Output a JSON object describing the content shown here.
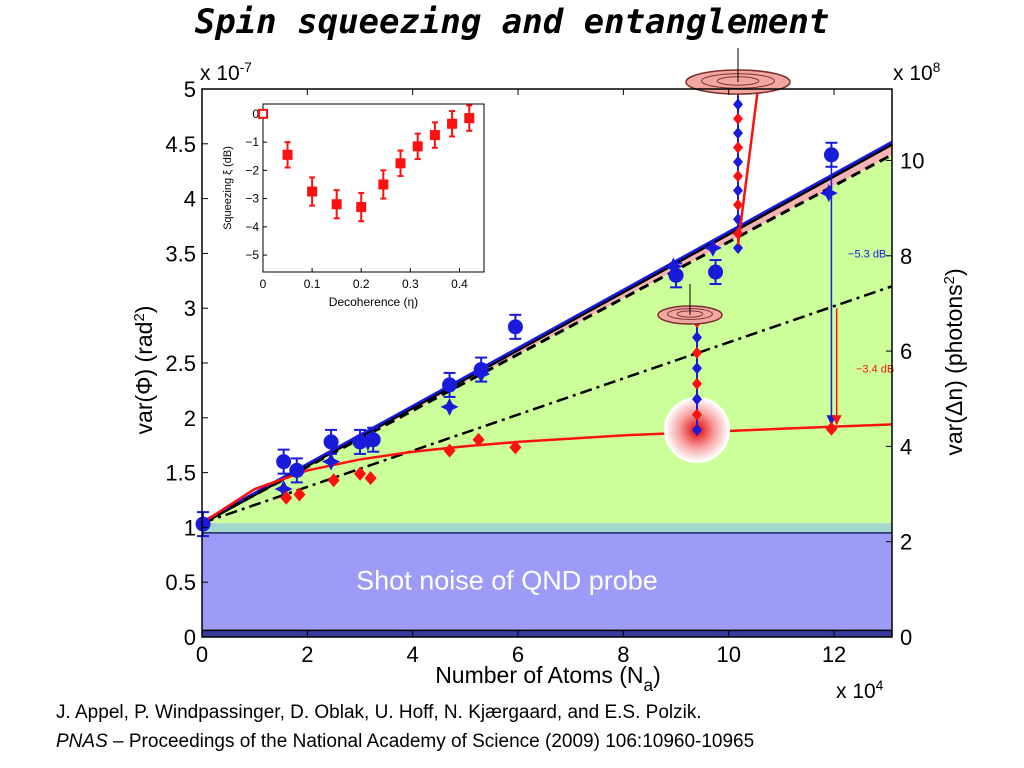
{
  "title": "Spin squeezing and entanglement",
  "references": {
    "authors": "J. Appel, P. Windpassinger, D. Oblak, U. Hoff, N. Kjærgaard, and E.S. Polzik.",
    "journal_italic": "PNAS",
    "journal_rest": " – Proceedings of the National Academy of Science (2009) 106:10960-10965"
  },
  "colors": {
    "green_fill": "#ccff99",
    "pink_fill": "#f4b4b4",
    "teal_band": "#a3d8cc",
    "probe_band": "#9c9cf8",
    "dark_band": "#3b3b9e",
    "blue": "#1a1adb",
    "red": "#ff1010",
    "black": "#000000"
  },
  "chart_data": [
    {
      "type": "scatter",
      "title": "",
      "xlabel": "Number of Atoms (N",
      "xlabel_sub": "a",
      "xlabel_close": ")",
      "x_multiplier": "x 10",
      "x_multiplier_exp": "4",
      "ylabel_left": "var(Φ)    (rad",
      "ylabel_left_exp": "2",
      "ylabel_left_close": ")",
      "y_multiplier": "x 10",
      "y_multiplier_exp": "-7",
      "ylabel_right": "var(Δn)   (photons",
      "ylabel_right_exp": "2",
      "ylabel_right_close": ")",
      "y2_multiplier": "x 10",
      "y2_multiplier_exp": "8",
      "xlim": [
        0,
        13.1
      ],
      "ylim": [
        0,
        5
      ],
      "y2lim": [
        0,
        11.5
      ],
      "xticks": [
        "0",
        "2",
        "4",
        "6",
        "8",
        "10",
        "12"
      ],
      "xtick_values": [
        0,
        2,
        4,
        6,
        8,
        10,
        12
      ],
      "yticks": [
        "0",
        "0.5",
        "1",
        "1.5",
        "2",
        "2.5",
        "3",
        "3.5",
        "4",
        "4.5",
        "5"
      ],
      "ytick_values": [
        0,
        0.5,
        1,
        1.5,
        2,
        2.5,
        3,
        3.5,
        4,
        4.5,
        5
      ],
      "y2ticks": [
        "0",
        "2",
        "4",
        "6",
        "8",
        "10"
      ],
      "y2tick_values": [
        0,
        2,
        4,
        6,
        8,
        10
      ],
      "band_label": "Shot noise of QND probe",
      "shot_noise_level": 0.95,
      "teal_band_top": 1.04,
      "dark_band_top": 0.06,
      "projection_noise_line": {
        "x": [
          0,
          13.1
        ],
        "y": [
          1.04,
          4.5
        ]
      },
      "dashed_line": {
        "x": [
          0,
          13.1
        ],
        "y": [
          1.04,
          4.4
        ]
      },
      "dashdot_line": {
        "x": [
          0,
          13.1
        ],
        "y": [
          1.04,
          3.2
        ]
      },
      "fit_curve": {
        "x": [
          0,
          1,
          2,
          3,
          4,
          5,
          6,
          7,
          8,
          9,
          10,
          11,
          12,
          13.1
        ],
        "y": [
          1.04,
          1.35,
          1.52,
          1.62,
          1.69,
          1.74,
          1.78,
          1.81,
          1.84,
          1.86,
          1.88,
          1.9,
          1.92,
          1.94
        ]
      },
      "series": [
        {
          "marker": "circle",
          "color": "blue",
          "x": [
            0.02,
            1.55,
            1.8,
            2.45,
            3,
            3.25,
            4.7,
            5.3,
            5.95,
            9,
            9.75,
            11.95
          ],
          "y": [
            1.03,
            1.6,
            1.52,
            1.78,
            1.78,
            1.8,
            2.3,
            2.44,
            2.83,
            3.3,
            3.33,
            4.4
          ]
        },
        {
          "marker": "star",
          "color": "blue",
          "x": [
            1.55,
            2.45,
            3.15,
            4.7,
            5.3,
            8.95,
            9.7,
            11.9
          ],
          "y": [
            1.35,
            1.6,
            1.78,
            2.1,
            2.4,
            3.38,
            3.55,
            4.05
          ]
        },
        {
          "marker": "diamond",
          "color": "red",
          "x": [
            1.6,
            1.85,
            2.5,
            3,
            3.2,
            4.7,
            5.25,
            5.95,
            11.95
          ],
          "y": [
            1.27,
            1.3,
            1.43,
            1.49,
            1.45,
            1.7,
            1.8,
            1.73,
            1.9
          ]
        }
      ],
      "annotations": [
        {
          "text": "−5.3 dB",
          "color": "blue",
          "x": 12.0,
          "y": 3.5
        },
        {
          "text": "−3.4 dB",
          "color": "red",
          "x": 12.15,
          "y": 2.45
        }
      ]
    },
    {
      "type": "scatter",
      "title": "",
      "xlabel": "Decoherence (η)",
      "ylabel": "Squeezing ξ (dB)",
      "xlim": [
        0,
        0.45
      ],
      "ylim": [
        -5.6,
        0.35
      ],
      "xticks": [
        "0",
        "0.1",
        "0.2",
        "0.3",
        "0.4"
      ],
      "xtick_values": [
        0,
        0.1,
        0.2,
        0.3,
        0.4
      ],
      "yticks": [
        "0",
        "−1",
        "−2",
        "−3",
        "−4",
        "−5"
      ],
      "ytick_values": [
        0,
        -1,
        -2,
        -3,
        -4,
        -5
      ],
      "series": [
        {
          "marker": "square",
          "color": "red",
          "x": [
            0.0,
            0.05,
            0.1,
            0.15,
            0.2,
            0.245,
            0.28,
            0.315,
            0.35,
            0.385,
            0.42
          ],
          "y": [
            0.0,
            -1.45,
            -2.75,
            -3.2,
            -3.3,
            -2.5,
            -1.75,
            -1.15,
            -0.75,
            -0.35,
            -0.15
          ],
          "err": [
            0,
            0.45,
            0.5,
            0.5,
            0.5,
            0.5,
            0.45,
            0.45,
            0.45,
            0.45,
            0.45
          ]
        }
      ]
    }
  ]
}
